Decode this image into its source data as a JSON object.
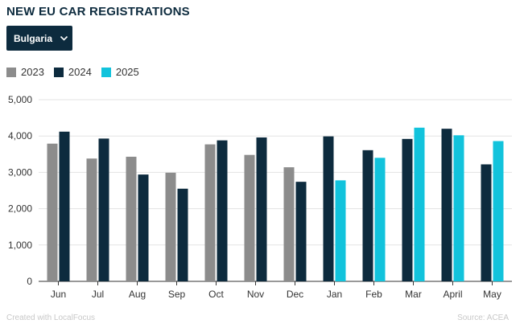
{
  "title": "NEW EU CAR REGISTRATIONS",
  "country_select": {
    "value": "Bulgaria"
  },
  "footer": {
    "credit": "Created with LocalFocus",
    "source": "Source: ACEA"
  },
  "colors": {
    "2023": "#8c8c8c",
    "2024": "#0d2b3e",
    "2025": "#12c3dc",
    "grid": "#e3e3e3",
    "axis": "#333333"
  },
  "chart_data": {
    "type": "bar",
    "title": "NEW EU CAR REGISTRATIONS",
    "categories": [
      "Jun",
      "Jul",
      "Aug",
      "Sep",
      "Oct",
      "Nov",
      "Dec",
      "Jan",
      "Feb",
      "Mar",
      "April",
      "May"
    ],
    "series": [
      {
        "name": "2023",
        "values": [
          3790,
          3380,
          3430,
          2990,
          3770,
          3480,
          3140,
          null,
          null,
          null,
          null,
          null
        ]
      },
      {
        "name": "2024",
        "values": [
          4120,
          3930,
          2940,
          2550,
          3880,
          3960,
          2740,
          3990,
          3610,
          3920,
          4200,
          3220
        ]
      },
      {
        "name": "2025",
        "values": [
          null,
          null,
          null,
          null,
          null,
          null,
          null,
          2780,
          3400,
          4230,
          4020,
          3860
        ]
      }
    ],
    "yticks": [
      "0",
      "1,000",
      "2,000",
      "3,000",
      "4,000",
      "5,000"
    ],
    "ylim": [
      0,
      5000
    ],
    "grid": true,
    "legend_position": "top-left"
  }
}
